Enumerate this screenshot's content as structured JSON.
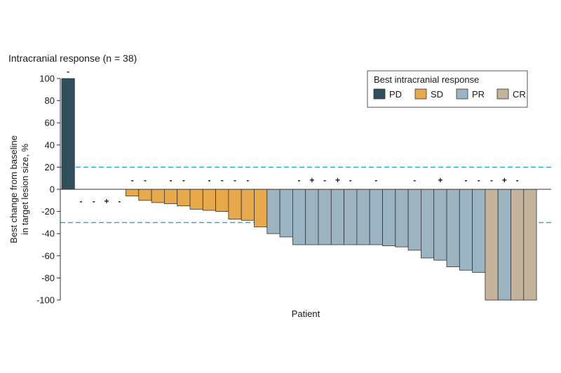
{
  "chart_data": {
    "type": "bar",
    "title": "Intracranial response (n = 38)",
    "xlabel": "Patient",
    "ylabel_line1": "Best change from baseline",
    "ylabel_line2": "in target lesion size, %",
    "ylim": [
      -100,
      100
    ],
    "yticks": [
      100,
      80,
      60,
      40,
      20,
      0,
      -20,
      -40,
      -60,
      -80,
      -100
    ],
    "reference_lines": [
      20,
      -30
    ],
    "legend": {
      "title": "Best intracranial response",
      "entries": [
        {
          "key": "PD",
          "label": "PD",
          "color": "#2f4f5c"
        },
        {
          "key": "SD",
          "label": "SD",
          "color": "#e8a94c"
        },
        {
          "key": "PR",
          "label": "PR",
          "color": "#9cb4c2"
        },
        {
          "key": "CR",
          "label": "CR",
          "color": "#c2b39a"
        }
      ],
      "placement": "top-right"
    },
    "bars": [
      {
        "value": 100,
        "response": "PD",
        "marker": "-"
      },
      {
        "value": 0,
        "response": "PD",
        "marker": "-"
      },
      {
        "value": 0,
        "response": "PD",
        "marker": "-"
      },
      {
        "value": 0,
        "response": "PD",
        "marker": "+"
      },
      {
        "value": 0,
        "response": "PD",
        "marker": "-"
      },
      {
        "value": -6,
        "response": "SD",
        "marker": "-"
      },
      {
        "value": -10,
        "response": "SD",
        "marker": "-"
      },
      {
        "value": -12,
        "response": "SD",
        "marker": ""
      },
      {
        "value": -13,
        "response": "SD",
        "marker": "-"
      },
      {
        "value": -15,
        "response": "SD",
        "marker": "-"
      },
      {
        "value": -18,
        "response": "SD",
        "marker": ""
      },
      {
        "value": -19,
        "response": "SD",
        "marker": "-"
      },
      {
        "value": -20,
        "response": "SD",
        "marker": "-"
      },
      {
        "value": -27,
        "response": "SD",
        "marker": "-"
      },
      {
        "value": -28,
        "response": "SD",
        "marker": "-"
      },
      {
        "value": -34,
        "response": "SD",
        "marker": ""
      },
      {
        "value": -40,
        "response": "PR",
        "marker": ""
      },
      {
        "value": -43,
        "response": "PR",
        "marker": ""
      },
      {
        "value": -50,
        "response": "PR",
        "marker": "-"
      },
      {
        "value": -50,
        "response": "PR",
        "marker": "+"
      },
      {
        "value": -50,
        "response": "PR",
        "marker": "-"
      },
      {
        "value": -50,
        "response": "PR",
        "marker": "+"
      },
      {
        "value": -50,
        "response": "PR",
        "marker": "-"
      },
      {
        "value": -50,
        "response": "PR",
        "marker": ""
      },
      {
        "value": -50,
        "response": "PR",
        "marker": "-"
      },
      {
        "value": -51,
        "response": "PR",
        "marker": ""
      },
      {
        "value": -52,
        "response": "PR",
        "marker": ""
      },
      {
        "value": -55,
        "response": "PR",
        "marker": "-"
      },
      {
        "value": -62,
        "response": "PR",
        "marker": ""
      },
      {
        "value": -64,
        "response": "PR",
        "marker": "+"
      },
      {
        "value": -70,
        "response": "PR",
        "marker": ""
      },
      {
        "value": -73,
        "response": "PR",
        "marker": "-"
      },
      {
        "value": -75,
        "response": "PR",
        "marker": "-"
      },
      {
        "value": -100,
        "response": "CR",
        "marker": "-"
      },
      {
        "value": -100,
        "response": "PR",
        "marker": "+"
      },
      {
        "value": -100,
        "response": "CR",
        "marker": "-"
      },
      {
        "value": -100,
        "response": "CR",
        "marker": ""
      }
    ]
  }
}
